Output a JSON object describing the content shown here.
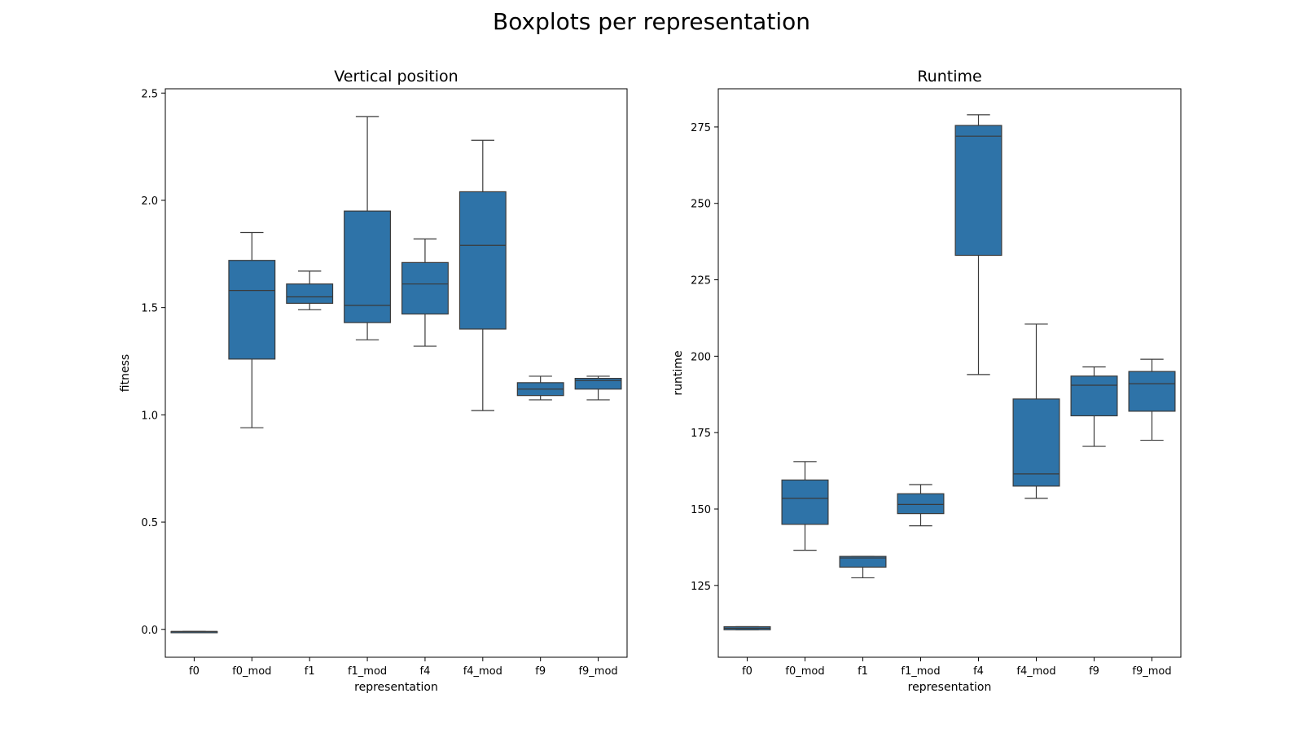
{
  "figure": {
    "title": "Boxplots per representation"
  },
  "colors": {
    "box_fill": "#2e73a8",
    "line": "#3a3a3a",
    "frame": "#000000"
  },
  "chart_data": [
    {
      "type": "box",
      "title": "Vertical position",
      "xlabel": "representation",
      "ylabel": "fitness",
      "ylim": [
        -0.13,
        2.52
      ],
      "yticks": [
        "0.0",
        "0.5",
        "1.0",
        "1.5",
        "2.0",
        "2.5"
      ],
      "ytick_values": [
        0.0,
        0.5,
        1.0,
        1.5,
        2.0,
        2.5
      ],
      "categories": [
        "f0",
        "f0_mod",
        "f1",
        "f1_mod",
        "f4",
        "f4_mod",
        "f9",
        "f9_mod"
      ],
      "boxes": [
        {
          "whisker_low": -0.01,
          "q1": -0.01,
          "median": -0.01,
          "q3": -0.01,
          "whisker_high": -0.01
        },
        {
          "whisker_low": 0.94,
          "q1": 1.26,
          "median": 1.58,
          "q3": 1.72,
          "whisker_high": 1.85
        },
        {
          "whisker_low": 1.49,
          "q1": 1.52,
          "median": 1.55,
          "q3": 1.61,
          "whisker_high": 1.67
        },
        {
          "whisker_low": 1.35,
          "q1": 1.43,
          "median": 1.51,
          "q3": 1.95,
          "whisker_high": 2.39
        },
        {
          "whisker_low": 1.32,
          "q1": 1.47,
          "median": 1.61,
          "q3": 1.71,
          "whisker_high": 1.82
        },
        {
          "whisker_low": 1.02,
          "q1": 1.4,
          "median": 1.79,
          "q3": 2.04,
          "whisker_high": 2.28
        },
        {
          "whisker_low": 1.07,
          "q1": 1.09,
          "median": 1.12,
          "q3": 1.15,
          "whisker_high": 1.18
        },
        {
          "whisker_low": 1.07,
          "q1": 1.12,
          "median": 1.16,
          "q3": 1.17,
          "whisker_high": 1.18
        }
      ]
    },
    {
      "type": "box",
      "title": "Runtime",
      "xlabel": "representation",
      "ylabel": "runtime",
      "ylim": [
        101.5,
        287.5
      ],
      "yticks": [
        "125",
        "150",
        "175",
        "200",
        "225",
        "250",
        "275"
      ],
      "ytick_values": [
        125,
        150,
        175,
        200,
        225,
        250,
        275
      ],
      "categories": [
        "f0",
        "f0_mod",
        "f1",
        "f1_mod",
        "f4",
        "f4_mod",
        "f9",
        "f9_mod"
      ],
      "boxes": [
        {
          "whisker_low": 110.5,
          "q1": 110.5,
          "median": 111,
          "q3": 111.5,
          "whisker_high": 111.5
        },
        {
          "whisker_low": 136.5,
          "q1": 145,
          "median": 153.5,
          "q3": 159.5,
          "whisker_high": 165.5
        },
        {
          "whisker_low": 127.5,
          "q1": 131,
          "median": 134,
          "q3": 134.5,
          "whisker_high": 134.5
        },
        {
          "whisker_low": 144.5,
          "q1": 148.5,
          "median": 151.5,
          "q3": 155,
          "whisker_high": 158
        },
        {
          "whisker_low": 194,
          "q1": 233,
          "median": 272,
          "q3": 275.5,
          "whisker_high": 279
        },
        {
          "whisker_low": 153.5,
          "q1": 157.5,
          "median": 161.5,
          "q3": 186,
          "whisker_high": 210.5
        },
        {
          "whisker_low": 170.5,
          "q1": 180.5,
          "median": 190.5,
          "q3": 193.5,
          "whisker_high": 196.5
        },
        {
          "whisker_low": 172.5,
          "q1": 182,
          "median": 191,
          "q3": 195,
          "whisker_high": 199
        }
      ]
    }
  ]
}
